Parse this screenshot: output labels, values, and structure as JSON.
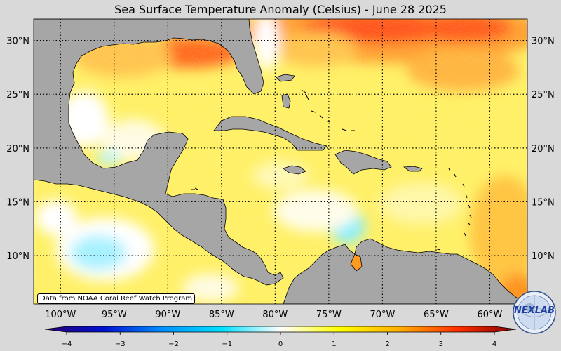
{
  "title": "Sea Surface Temperature Anomaly (Celsius) - June 28 2025",
  "credit": "Data from NOAA Coral Reef Watch Program",
  "logo": {
    "text": "NEXLAB",
    "icon": "nexlab-globe-logo"
  },
  "map": {
    "lon_range": [
      -102.5,
      -56.5
    ],
    "lat_range": [
      5.5,
      32
    ],
    "lat_ticks": [
      {
        "value": 30,
        "label": "30°N"
      },
      {
        "value": 25,
        "label": "25°N"
      },
      {
        "value": 20,
        "label": "20°N"
      },
      {
        "value": 15,
        "label": "15°N"
      },
      {
        "value": 10,
        "label": "10°N"
      }
    ],
    "lon_ticks": [
      {
        "value": -100,
        "label": "100°W"
      },
      {
        "value": -95,
        "label": "95°W"
      },
      {
        "value": -90,
        "label": "90°W"
      },
      {
        "value": -85,
        "label": "85°W"
      },
      {
        "value": -80,
        "label": "80°W"
      },
      {
        "value": -75,
        "label": "75°W"
      },
      {
        "value": -70,
        "label": "70°W"
      },
      {
        "value": -65,
        "label": "65°W"
      },
      {
        "value": -60,
        "label": "60°W"
      }
    ],
    "colors": {
      "land": "#a6a6a6",
      "ocean_base": "#ffef5a",
      "background": "#d9d9d9"
    }
  },
  "colorbar": {
    "range": [
      -4,
      4
    ],
    "ticks": [
      {
        "value": -4,
        "label": "−4"
      },
      {
        "value": -3,
        "label": "−3"
      },
      {
        "value": -2,
        "label": "−2"
      },
      {
        "value": -1,
        "label": "−1"
      },
      {
        "value": 0,
        "label": "0"
      },
      {
        "value": 1,
        "label": "1"
      },
      {
        "value": 2,
        "label": "2"
      },
      {
        "value": 3,
        "label": "3"
      },
      {
        "value": 4,
        "label": "4"
      }
    ],
    "stops": [
      "#2a0070",
      "#0010d0",
      "#0090ff",
      "#00e0ff",
      "#ffffff",
      "#ffff00",
      "#ffb000",
      "#ff3000",
      "#800000"
    ]
  }
}
